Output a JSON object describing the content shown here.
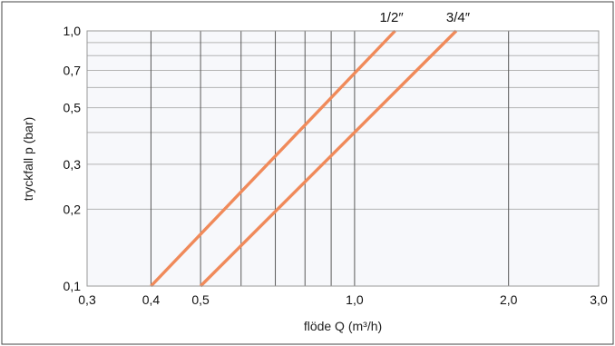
{
  "chart_data": {
    "type": "line",
    "title": "",
    "xlabel": "flöde Q (m³/h)",
    "ylabel": "tryckfall p (bar)",
    "x_scale": "log",
    "y_scale": "log",
    "xlim": [
      0.3,
      3.0
    ],
    "ylim": [
      0.1,
      1.0
    ],
    "grid": true,
    "x_tick_values": [
      0.3,
      0.4,
      0.5,
      1.0,
      2.0,
      3.0
    ],
    "x_tick_labels": [
      "0,3",
      "0,4",
      "0,5",
      "1,0",
      "2,0",
      "3,0"
    ],
    "y_tick_values": [
      0.1,
      0.2,
      0.3,
      0.5,
      0.7,
      1.0
    ],
    "y_tick_labels": [
      "0,1",
      "0,2",
      "0,3",
      "0,5",
      "0,7",
      "1,0"
    ],
    "x_grid_values": [
      0.4,
      0.5,
      0.6,
      0.7,
      0.8,
      0.9,
      1.0,
      2.0
    ],
    "y_grid_values": [
      0.2,
      0.3,
      0.4,
      0.5,
      0.6,
      0.7,
      0.8,
      0.9
    ],
    "series": [
      {
        "name": "1/2\"",
        "label": "1/2″",
        "color": "#f08a5a",
        "x": [
          0.4,
          1.2
        ],
        "y": [
          0.1,
          1.0
        ]
      },
      {
        "name": "3/4\"",
        "label": "3/4″",
        "color": "#f08a5a",
        "x": [
          0.5,
          1.58
        ],
        "y": [
          0.1,
          1.0
        ]
      }
    ]
  },
  "colors": {
    "background": "#ffffff",
    "plot_background": "#f7f8fb",
    "grid_vertical": "#5a5a5a",
    "grid_horizontal": "#b4b4b4",
    "frame": "#444444",
    "series_line": "#f08a5a"
  }
}
